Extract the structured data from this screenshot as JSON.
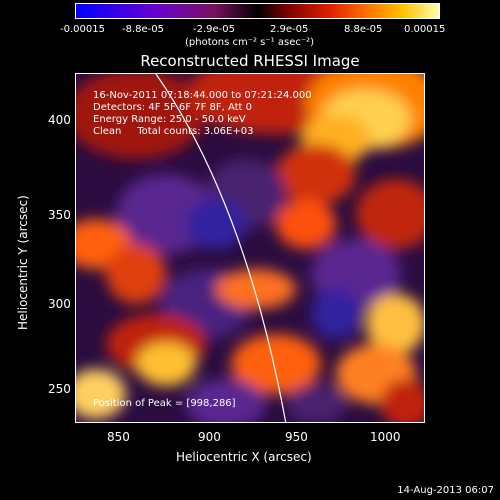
{
  "colorbar": {
    "ticks": [
      "-0.00015",
      "-8.8e-05",
      "-2.9e-05",
      "2.9e-05",
      "8.8e-05",
      "0.00015"
    ],
    "unit": "(photons cm⁻² s⁻¹ asec⁻²)",
    "colors": [
      "#0000ff",
      "#6a00d0",
      "#000000",
      "#e02000",
      "#ffc000",
      "#ffffb0"
    ]
  },
  "title": "Reconstructed RHESSI Image",
  "info": {
    "line1": "16-Nov-2011 07:18:44.000 to 07:21:24.000",
    "line2": "Detectors: 4F 5F 6F 7F 8F, Att 0",
    "line3": "Energy Range: 25.0 - 50.0 keV",
    "line4": "Clean     Total counts: 3.06E+03",
    "peak": "Position of Peak = [998,286]"
  },
  "axes": {
    "xlabel": "Heliocentric X (arcsec)",
    "ylabel": "Heliocentric Y (arcsec)",
    "xticks": [
      "850",
      "900",
      "950",
      "1000"
    ],
    "yticks": [
      "400",
      "350",
      "300",
      "250"
    ]
  },
  "footer": "14-Aug-2013 06:07"
}
